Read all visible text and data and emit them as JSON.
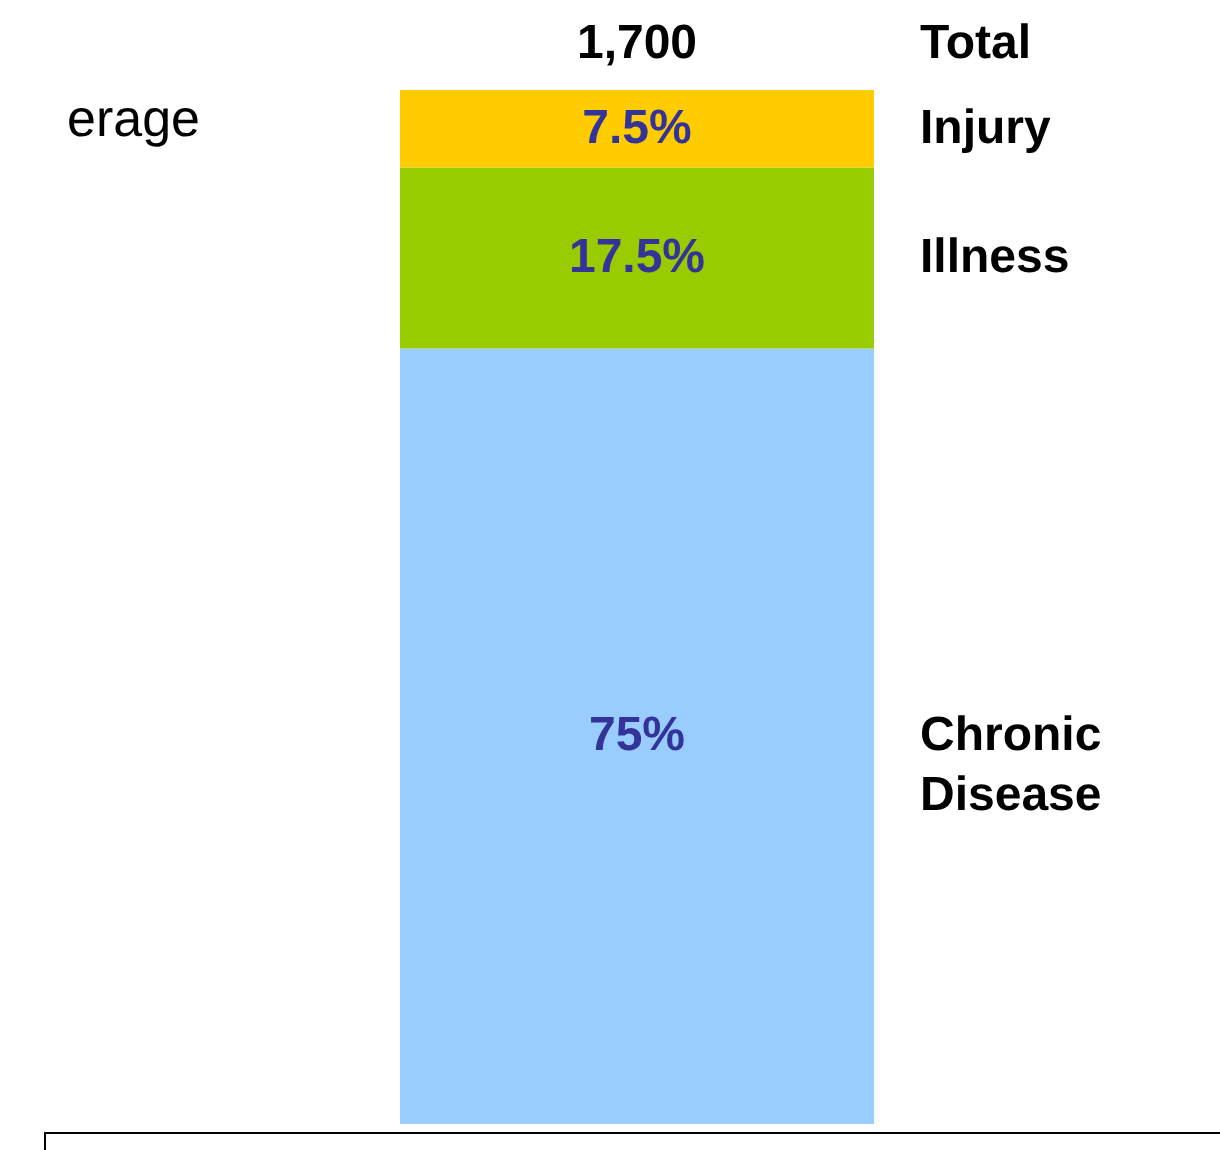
{
  "chart_data": {
    "type": "bar",
    "stacked": true,
    "categories": [
      null
    ],
    "series": [
      {
        "name": "Chronic Disease",
        "color": "#99ccff",
        "values": [
          75
        ],
        "value_labels": [
          "75%"
        ]
      },
      {
        "name": "Illness",
        "color": "#99cc00",
        "values": [
          17.5
        ],
        "value_labels": [
          "17.5%"
        ]
      },
      {
        "name": "Injury",
        "color": "#ffcc00",
        "values": [
          7.5
        ],
        "value_labels": [
          "7.5%"
        ]
      }
    ],
    "annotations": [
      "1,700",
      "Total",
      "erage"
    ]
  }
}
